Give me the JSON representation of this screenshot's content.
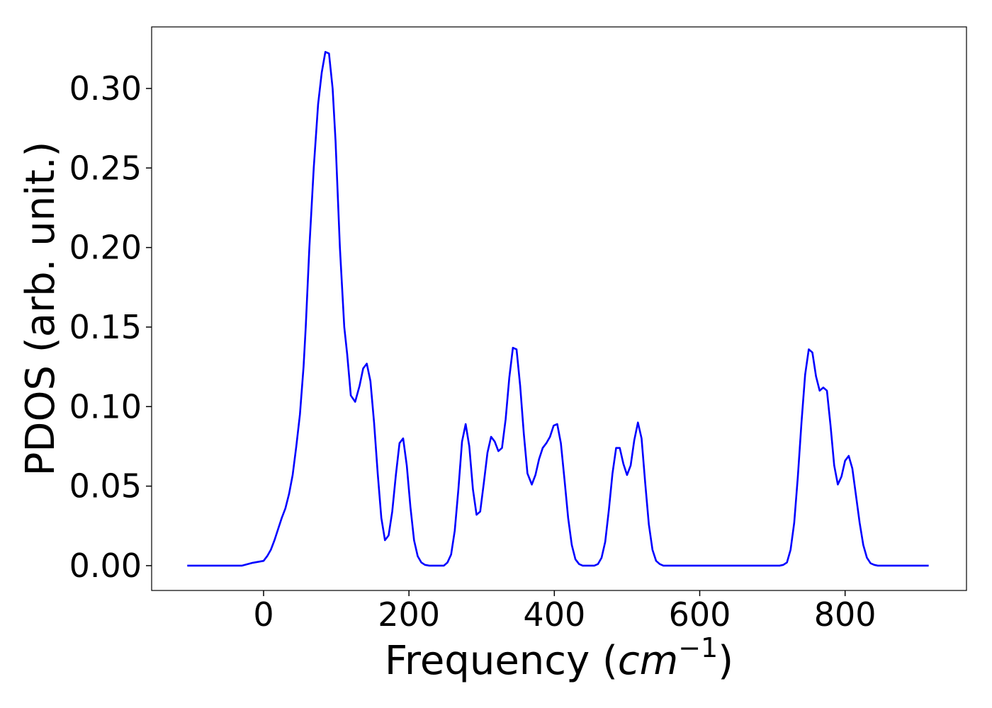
{
  "chart_data": {
    "type": "line",
    "xlabel_parts": [
      "Frequency (",
      "cm",
      "−1",
      ")"
    ],
    "ylabel": "PDOS (arb. unit.)",
    "xlim": [
      -154,
      967
    ],
    "ylim": [
      -0.0156,
      0.3387
    ],
    "xticks": [
      0,
      200,
      400,
      600,
      800
    ],
    "yticks": [
      {
        "value": 0,
        "label": "0.00"
      },
      0.05,
      {
        "value": 0.1,
        "label": "0.10"
      },
      0.15,
      {
        "value": 0.2,
        "label": "0.20"
      },
      0.25,
      {
        "value": 0.3,
        "label": "0.30"
      }
    ],
    "grid": false,
    "series": [
      {
        "name": "PDOS",
        "color": "#0000ff",
        "x": [
          -105,
          -30,
          -15,
          0,
          5,
          10,
          15,
          20,
          25,
          30,
          35,
          40,
          45,
          50,
          55,
          58,
          63,
          69,
          75,
          80,
          85,
          90,
          95,
          99,
          105,
          111,
          115,
          120,
          126,
          132,
          137,
          142,
          147,
          152,
          157,
          162,
          167,
          172,
          177,
          182,
          187,
          192,
          197,
          202,
          207,
          212,
          217,
          222,
          228,
          248,
          253,
          258,
          263,
          268,
          273,
          278,
          283,
          288,
          293,
          298,
          303,
          308,
          313,
          318,
          323,
          328,
          333,
          338,
          343,
          348,
          353,
          358,
          363,
          369,
          374,
          379,
          384,
          389,
          394,
          399,
          404,
          409,
          414,
          419,
          424,
          429,
          434,
          439,
          455,
          460,
          465,
          470,
          475,
          480,
          485,
          490,
          495,
          500,
          505,
          510,
          515,
          520,
          525,
          530,
          535,
          540,
          545,
          550,
          710,
          715,
          720,
          725,
          730,
          735,
          740,
          745,
          750,
          755,
          760,
          765,
          770,
          775,
          780,
          785,
          790,
          795,
          800,
          805,
          810,
          815,
          820,
          825,
          830,
          835,
          840,
          845,
          915
        ],
        "values": [
          0,
          0,
          0.0018,
          0.003,
          0.006,
          0.01,
          0.016,
          0.023,
          0.03,
          0.036,
          0.045,
          0.057,
          0.075,
          0.095,
          0.125,
          0.15,
          0.2,
          0.25,
          0.29,
          0.31,
          0.323,
          0.322,
          0.3,
          0.267,
          0.2,
          0.15,
          0.133,
          0.107,
          0.103,
          0.113,
          0.124,
          0.127,
          0.116,
          0.09,
          0.058,
          0.03,
          0.016,
          0.019,
          0.034,
          0.057,
          0.077,
          0.08,
          0.063,
          0.037,
          0.016,
          0.006,
          0.002,
          0.0005,
          0,
          0,
          0.002,
          0.007,
          0.022,
          0.048,
          0.078,
          0.089,
          0.075,
          0.048,
          0.032,
          0.034,
          0.052,
          0.071,
          0.081,
          0.078,
          0.072,
          0.074,
          0.092,
          0.118,
          0.137,
          0.136,
          0.113,
          0.083,
          0.058,
          0.051,
          0.057,
          0.067,
          0.074,
          0.077,
          0.081,
          0.088,
          0.089,
          0.077,
          0.054,
          0.03,
          0.013,
          0.004,
          0.001,
          0,
          0,
          0.001,
          0.005,
          0.015,
          0.035,
          0.058,
          0.074,
          0.074,
          0.064,
          0.057,
          0.063,
          0.079,
          0.09,
          0.08,
          0.052,
          0.026,
          0.01,
          0.003,
          0.001,
          0,
          0,
          0.0005,
          0.002,
          0.01,
          0.027,
          0.056,
          0.09,
          0.12,
          0.136,
          0.134,
          0.119,
          0.11,
          0.112,
          0.11,
          0.088,
          0.063,
          0.051,
          0.056,
          0.066,
          0.069,
          0.061,
          0.044,
          0.027,
          0.013,
          0.005,
          0.0015,
          0.0005,
          0,
          0
        ]
      }
    ]
  }
}
